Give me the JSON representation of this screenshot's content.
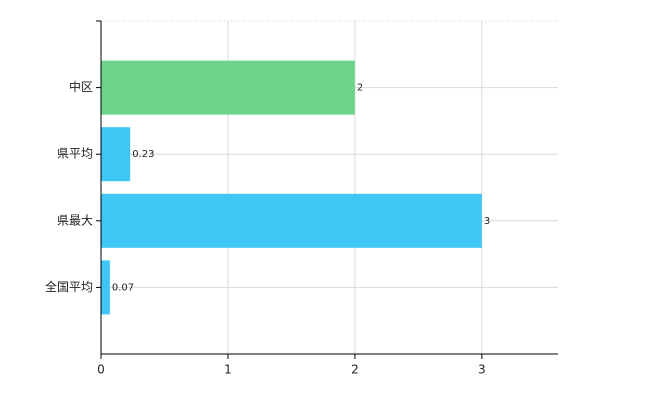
{
  "chart_data": {
    "type": "bar",
    "orientation": "horizontal",
    "categories": [
      "中区",
      "県平均",
      "県最大",
      "全国平均"
    ],
    "values": [
      2,
      0.23,
      3,
      0.07
    ],
    "colors": [
      "#6dd38a",
      "#3ec6f5",
      "#3ec6f5",
      "#3ec6f5"
    ],
    "xlim": [
      0,
      3.6
    ],
    "xticks": [
      0,
      1,
      2,
      3
    ],
    "grid": true
  }
}
